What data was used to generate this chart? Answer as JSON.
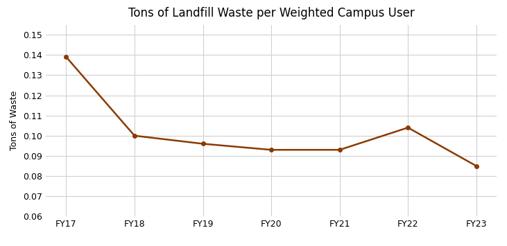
{
  "title": "Tons of Landfill Waste per Weighted Campus User",
  "xlabel": "",
  "ylabel": "Tons of Waste",
  "categories": [
    "FY17",
    "FY18",
    "FY19",
    "FY20",
    "FY21",
    "FY22",
    "FY23"
  ],
  "values": [
    0.139,
    0.1,
    0.096,
    0.093,
    0.093,
    0.104,
    0.085
  ],
  "line_color": "#8B3A00",
  "marker": "o",
  "marker_size": 4,
  "line_width": 1.8,
  "ylim": [
    0.06,
    0.155
  ],
  "yticks": [
    0.06,
    0.07,
    0.08,
    0.09,
    0.1,
    0.11,
    0.12,
    0.13,
    0.14,
    0.15
  ],
  "grid_color": "#d0d0d0",
  "background_color": "#ffffff",
  "title_fontsize": 12,
  "axis_label_fontsize": 9,
  "tick_fontsize": 9
}
